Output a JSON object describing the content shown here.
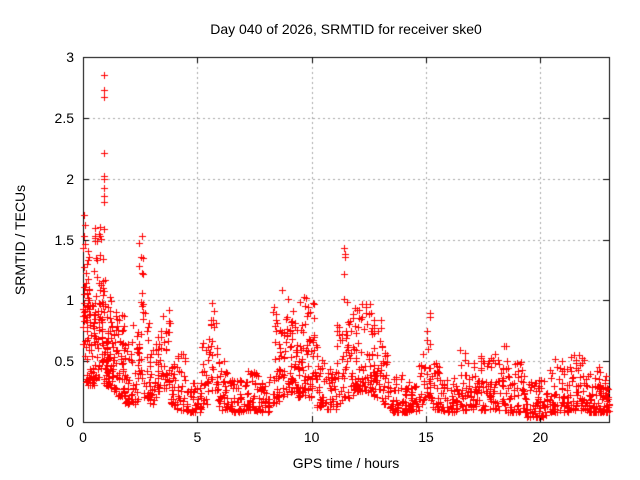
{
  "chart_data": {
    "type": "scatter",
    "title": "Day 040 of 2026, SRMTID for receiver ske0",
    "xlabel": "GPS time / hours",
    "ylabel": "SRMTID / TECUs",
    "xlim": [
      0,
      23.0
    ],
    "ylim": [
      0,
      3
    ],
    "x_ticks": [
      0,
      5,
      10,
      15,
      20
    ],
    "x_tick_labels": [
      "0",
      "5",
      "10",
      "15",
      "20"
    ],
    "y_ticks": [
      0,
      0.5,
      1,
      1.5,
      2,
      2.5,
      3
    ],
    "y_tick_labels": [
      "0",
      "0.5",
      "1",
      "1.5",
      "2",
      "2.5",
      "3"
    ],
    "grid": true,
    "legend": "none",
    "marker": "plus",
    "marker_size": 7,
    "marker_color": "#ff0000",
    "axis_color": "#000000",
    "grid_color": "#a8a8a8",
    "background_color": "#ffffff",
    "point_count_estimate": 1880,
    "seed": 1234567,
    "bins_format": "[t_start_hours, t_end_hours, n_points, y_min_TECU, y_max_TECU, bias] - scatter envelope read from the plot; points are dense near y_min, sparse near y_max",
    "density_bins": [
      [
        0.0,
        0.12,
        22,
        0.5,
        1.72,
        1.2
      ],
      [
        0.12,
        0.3,
        40,
        0.3,
        1.55,
        1.8
      ],
      [
        0.3,
        0.5,
        32,
        0.3,
        1.3,
        1.8
      ],
      [
        0.5,
        0.7,
        34,
        0.35,
        1.6,
        1.5
      ],
      [
        0.7,
        0.9,
        36,
        0.4,
        1.66,
        1.3
      ],
      [
        0.9,
        1.1,
        34,
        0.3,
        1.2,
        1.6
      ],
      [
        1.1,
        1.3,
        30,
        0.28,
        1.05,
        1.8
      ],
      [
        1.3,
        1.5,
        26,
        0.25,
        0.92,
        1.8
      ],
      [
        1.5,
        1.8,
        32,
        0.2,
        0.9,
        1.9
      ],
      [
        1.8,
        2.1,
        30,
        0.15,
        0.65,
        1.9
      ],
      [
        2.1,
        2.4,
        26,
        0.15,
        0.8,
        2.0
      ],
      [
        2.4,
        2.65,
        26,
        0.35,
        1.56,
        1.2
      ],
      [
        2.65,
        2.9,
        20,
        0.2,
        0.9,
        1.8
      ],
      [
        2.9,
        3.2,
        22,
        0.15,
        0.62,
        1.9
      ],
      [
        3.2,
        3.5,
        22,
        0.25,
        0.8,
        1.7
      ],
      [
        3.5,
        3.8,
        26,
        0.28,
        0.96,
        1.5
      ],
      [
        3.8,
        4.1,
        22,
        0.14,
        0.5,
        1.9
      ],
      [
        4.1,
        4.5,
        26,
        0.1,
        0.56,
        1.9
      ],
      [
        4.5,
        5.2,
        48,
        0.08,
        0.35,
        1.9
      ],
      [
        5.2,
        5.5,
        20,
        0.14,
        0.7,
        1.7
      ],
      [
        5.5,
        5.9,
        28,
        0.18,
        1.03,
        1.5
      ],
      [
        5.9,
        6.3,
        26,
        0.1,
        0.5,
        1.9
      ],
      [
        6.3,
        7.0,
        46,
        0.08,
        0.38,
        2.0
      ],
      [
        7.0,
        7.6,
        40,
        0.1,
        0.42,
        2.0
      ],
      [
        7.6,
        8.2,
        40,
        0.08,
        0.38,
        2.0
      ],
      [
        8.2,
        8.6,
        30,
        0.15,
        0.95,
        1.7
      ],
      [
        8.6,
        9.0,
        36,
        0.2,
        1.1,
        1.6
      ],
      [
        9.0,
        9.4,
        40,
        0.25,
        1.16,
        1.6
      ],
      [
        9.4,
        9.8,
        40,
        0.2,
        1.06,
        1.6
      ],
      [
        9.8,
        10.2,
        40,
        0.2,
        1.0,
        1.7
      ],
      [
        10.2,
        10.6,
        30,
        0.12,
        0.7,
        1.9
      ],
      [
        10.6,
        11.1,
        32,
        0.1,
        0.5,
        1.9
      ],
      [
        11.1,
        11.35,
        18,
        0.15,
        0.8,
        1.6
      ],
      [
        11.35,
        11.6,
        20,
        0.2,
        1.02,
        1.4
      ],
      [
        11.6,
        11.9,
        24,
        0.2,
        0.98,
        1.6
      ],
      [
        11.9,
        12.2,
        30,
        0.25,
        0.95,
        1.6
      ],
      [
        12.2,
        12.7,
        42,
        0.25,
        1.0,
        1.6
      ],
      [
        12.7,
        13.1,
        34,
        0.2,
        0.86,
        1.7
      ],
      [
        13.1,
        13.4,
        24,
        0.15,
        0.6,
        1.8
      ],
      [
        13.4,
        14.1,
        46,
        0.08,
        0.4,
        2.0
      ],
      [
        14.1,
        14.7,
        40,
        0.08,
        0.35,
        2.0
      ],
      [
        14.7,
        14.95,
        16,
        0.12,
        0.6,
        1.6
      ],
      [
        14.95,
        15.25,
        22,
        0.18,
        0.92,
        1.3
      ],
      [
        15.25,
        15.7,
        30,
        0.1,
        0.5,
        1.8
      ],
      [
        15.7,
        16.4,
        46,
        0.08,
        0.38,
        2.0
      ],
      [
        16.4,
        17.1,
        46,
        0.1,
        0.62,
        1.8
      ],
      [
        17.1,
        17.8,
        46,
        0.1,
        0.55,
        1.8
      ],
      [
        17.8,
        18.6,
        52,
        0.1,
        0.66,
        1.8
      ],
      [
        18.6,
        19.3,
        46,
        0.08,
        0.5,
        1.9
      ],
      [
        19.3,
        20.4,
        72,
        0.04,
        0.35,
        1.9
      ],
      [
        20.4,
        21.2,
        56,
        0.08,
        0.52,
        1.8
      ],
      [
        21.2,
        22.0,
        60,
        0.1,
        0.55,
        1.8
      ],
      [
        22.0,
        22.7,
        56,
        0.08,
        0.45,
        1.9
      ],
      [
        22.7,
        23.0,
        34,
        0.08,
        0.38,
        1.9
      ]
    ],
    "outlier_points": [
      [
        0.92,
        2.85
      ],
      [
        0.92,
        2.73
      ],
      [
        0.93,
        2.67
      ],
      [
        0.92,
        2.21
      ],
      [
        0.92,
        2.02
      ],
      [
        0.93,
        2.0
      ],
      [
        0.92,
        1.92
      ],
      [
        0.92,
        1.86
      ],
      [
        0.94,
        1.81
      ],
      [
        11.42,
        1.43
      ],
      [
        11.44,
        1.38
      ],
      [
        11.46,
        1.36
      ],
      [
        11.43,
        1.22
      ],
      [
        11.43,
        1.01
      ],
      [
        0.05,
        1.7
      ],
      [
        0.08,
        1.62
      ]
    ]
  }
}
